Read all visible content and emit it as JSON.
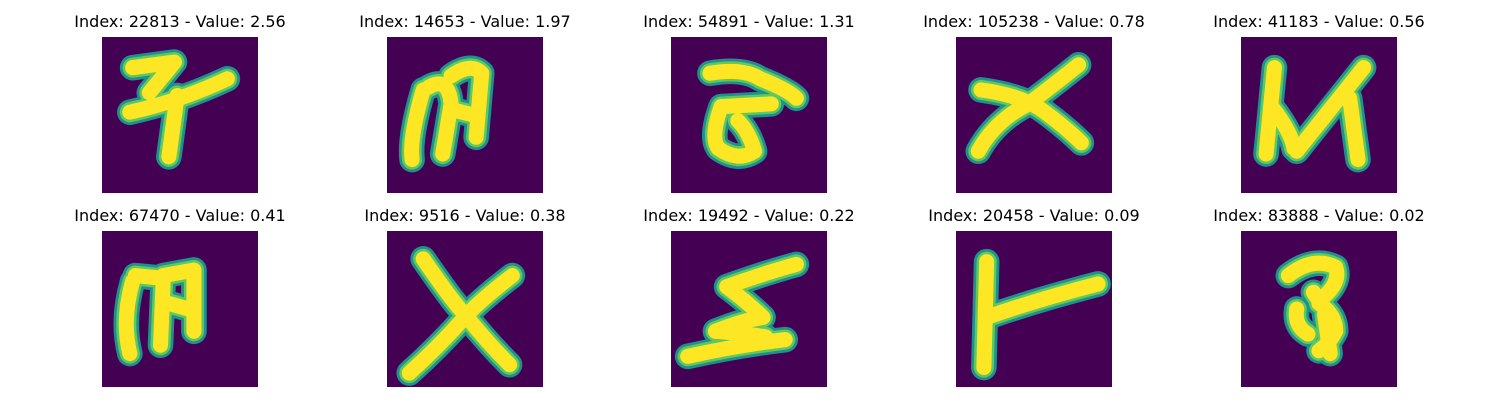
{
  "colors": {
    "background": "#440154",
    "mid": "#21908c",
    "edge": "#5ec962",
    "foreground": "#fde725"
  },
  "panels": [
    {
      "title": "Index: 22813 - Value: 2.56",
      "glyph": "seven-cross-glyph-icon"
    },
    {
      "title": "Index: 14653 - Value: 1.97",
      "glyph": "m-loop-glyph-icon"
    },
    {
      "title": "Index: 54891 - Value: 1.31",
      "glyph": "z-curve-glyph-icon"
    },
    {
      "title": "Index: 105238 - Value: 0.78",
      "glyph": "x-cross-glyph-icon"
    },
    {
      "title": "Index: 41183 - Value: 0.56",
      "glyph": "n-glyph-icon"
    },
    {
      "title": "Index: 67470 - Value: 0.41",
      "glyph": "m-loop-glyph-icon"
    },
    {
      "title": "Index: 9516 - Value: 0.38",
      "glyph": "x-cross-glyph-icon"
    },
    {
      "title": "Index: 19492 - Value: 0.22",
      "glyph": "zigzag-glyph-icon"
    },
    {
      "title": "Index: 20458 - Value: 0.09",
      "glyph": "t-sideways-glyph-icon"
    },
    {
      "title": "Index: 83888 - Value: 0.02",
      "glyph": "three-loop-glyph-icon"
    }
  ]
}
